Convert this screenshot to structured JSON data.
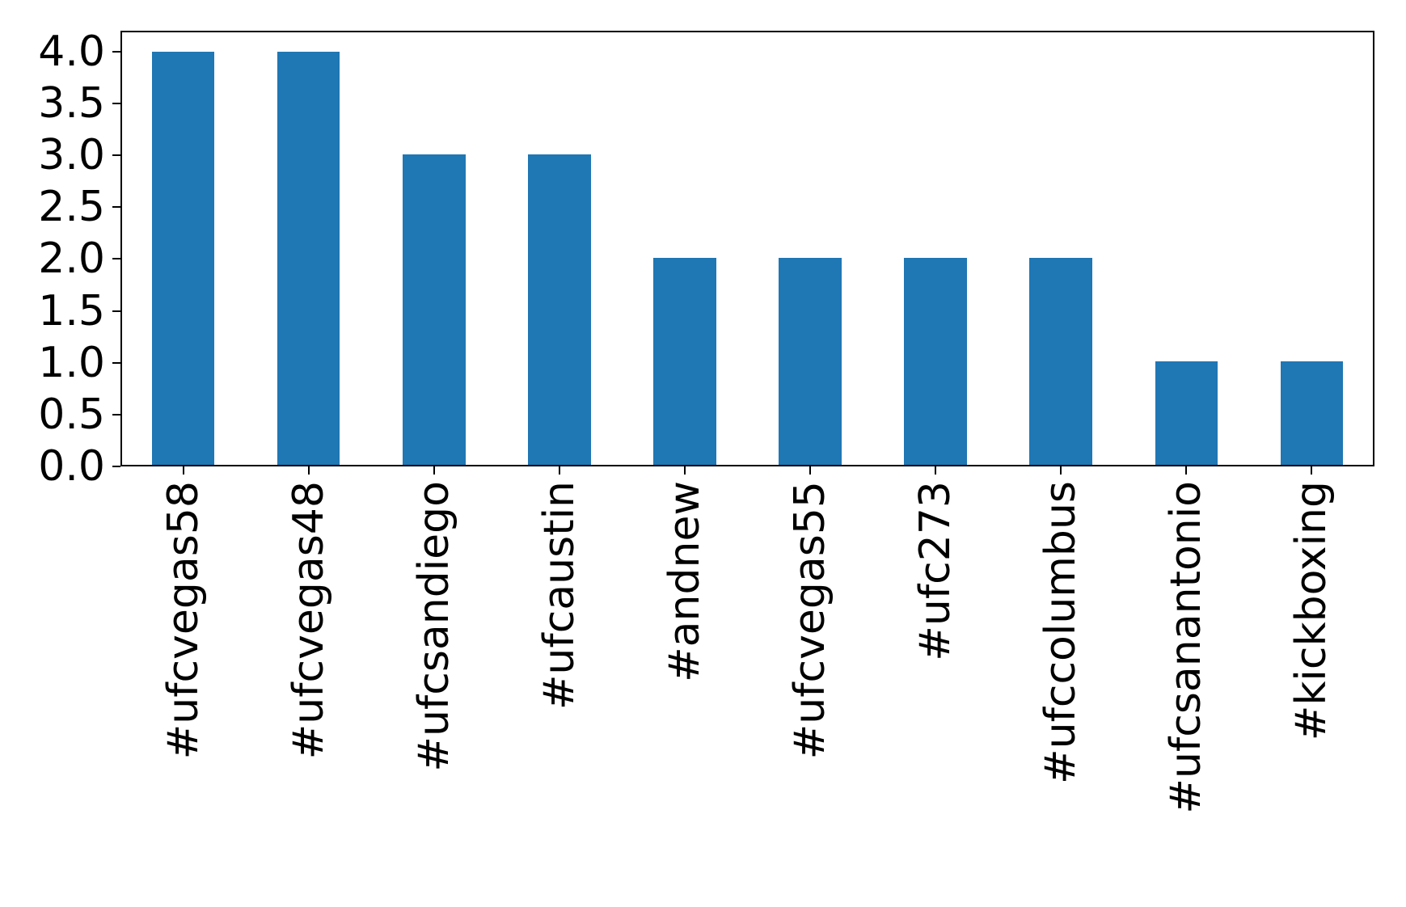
{
  "chart_data": {
    "type": "bar",
    "categories": [
      "#ufcvegas58",
      "#ufcvegas48",
      "#ufcsandiego",
      "#ufcaustin",
      "#andnew",
      "#ufcvegas55",
      "#ufc273",
      "#ufccolumbus",
      "#ufcsanantonio",
      "#kickboxing"
    ],
    "values": [
      4,
      4,
      3,
      3,
      2,
      2,
      2,
      2,
      1,
      1
    ],
    "title": "",
    "xlabel": "",
    "ylabel": "",
    "ylim": [
      0,
      4.2
    ],
    "yticks": [
      0.0,
      0.5,
      1.0,
      1.5,
      2.0,
      2.5,
      3.0,
      3.5,
      4.0
    ],
    "ytick_labels": [
      "0.0",
      "0.5",
      "1.0",
      "1.5",
      "2.0",
      "2.5",
      "3.0",
      "3.5",
      "4.0"
    ],
    "bar_color": "#1f77b4",
    "bar_width_fraction": 0.5,
    "x_tick_rotation_deg": 90,
    "grid": false,
    "legend": false,
    "frame": "full-box"
  }
}
